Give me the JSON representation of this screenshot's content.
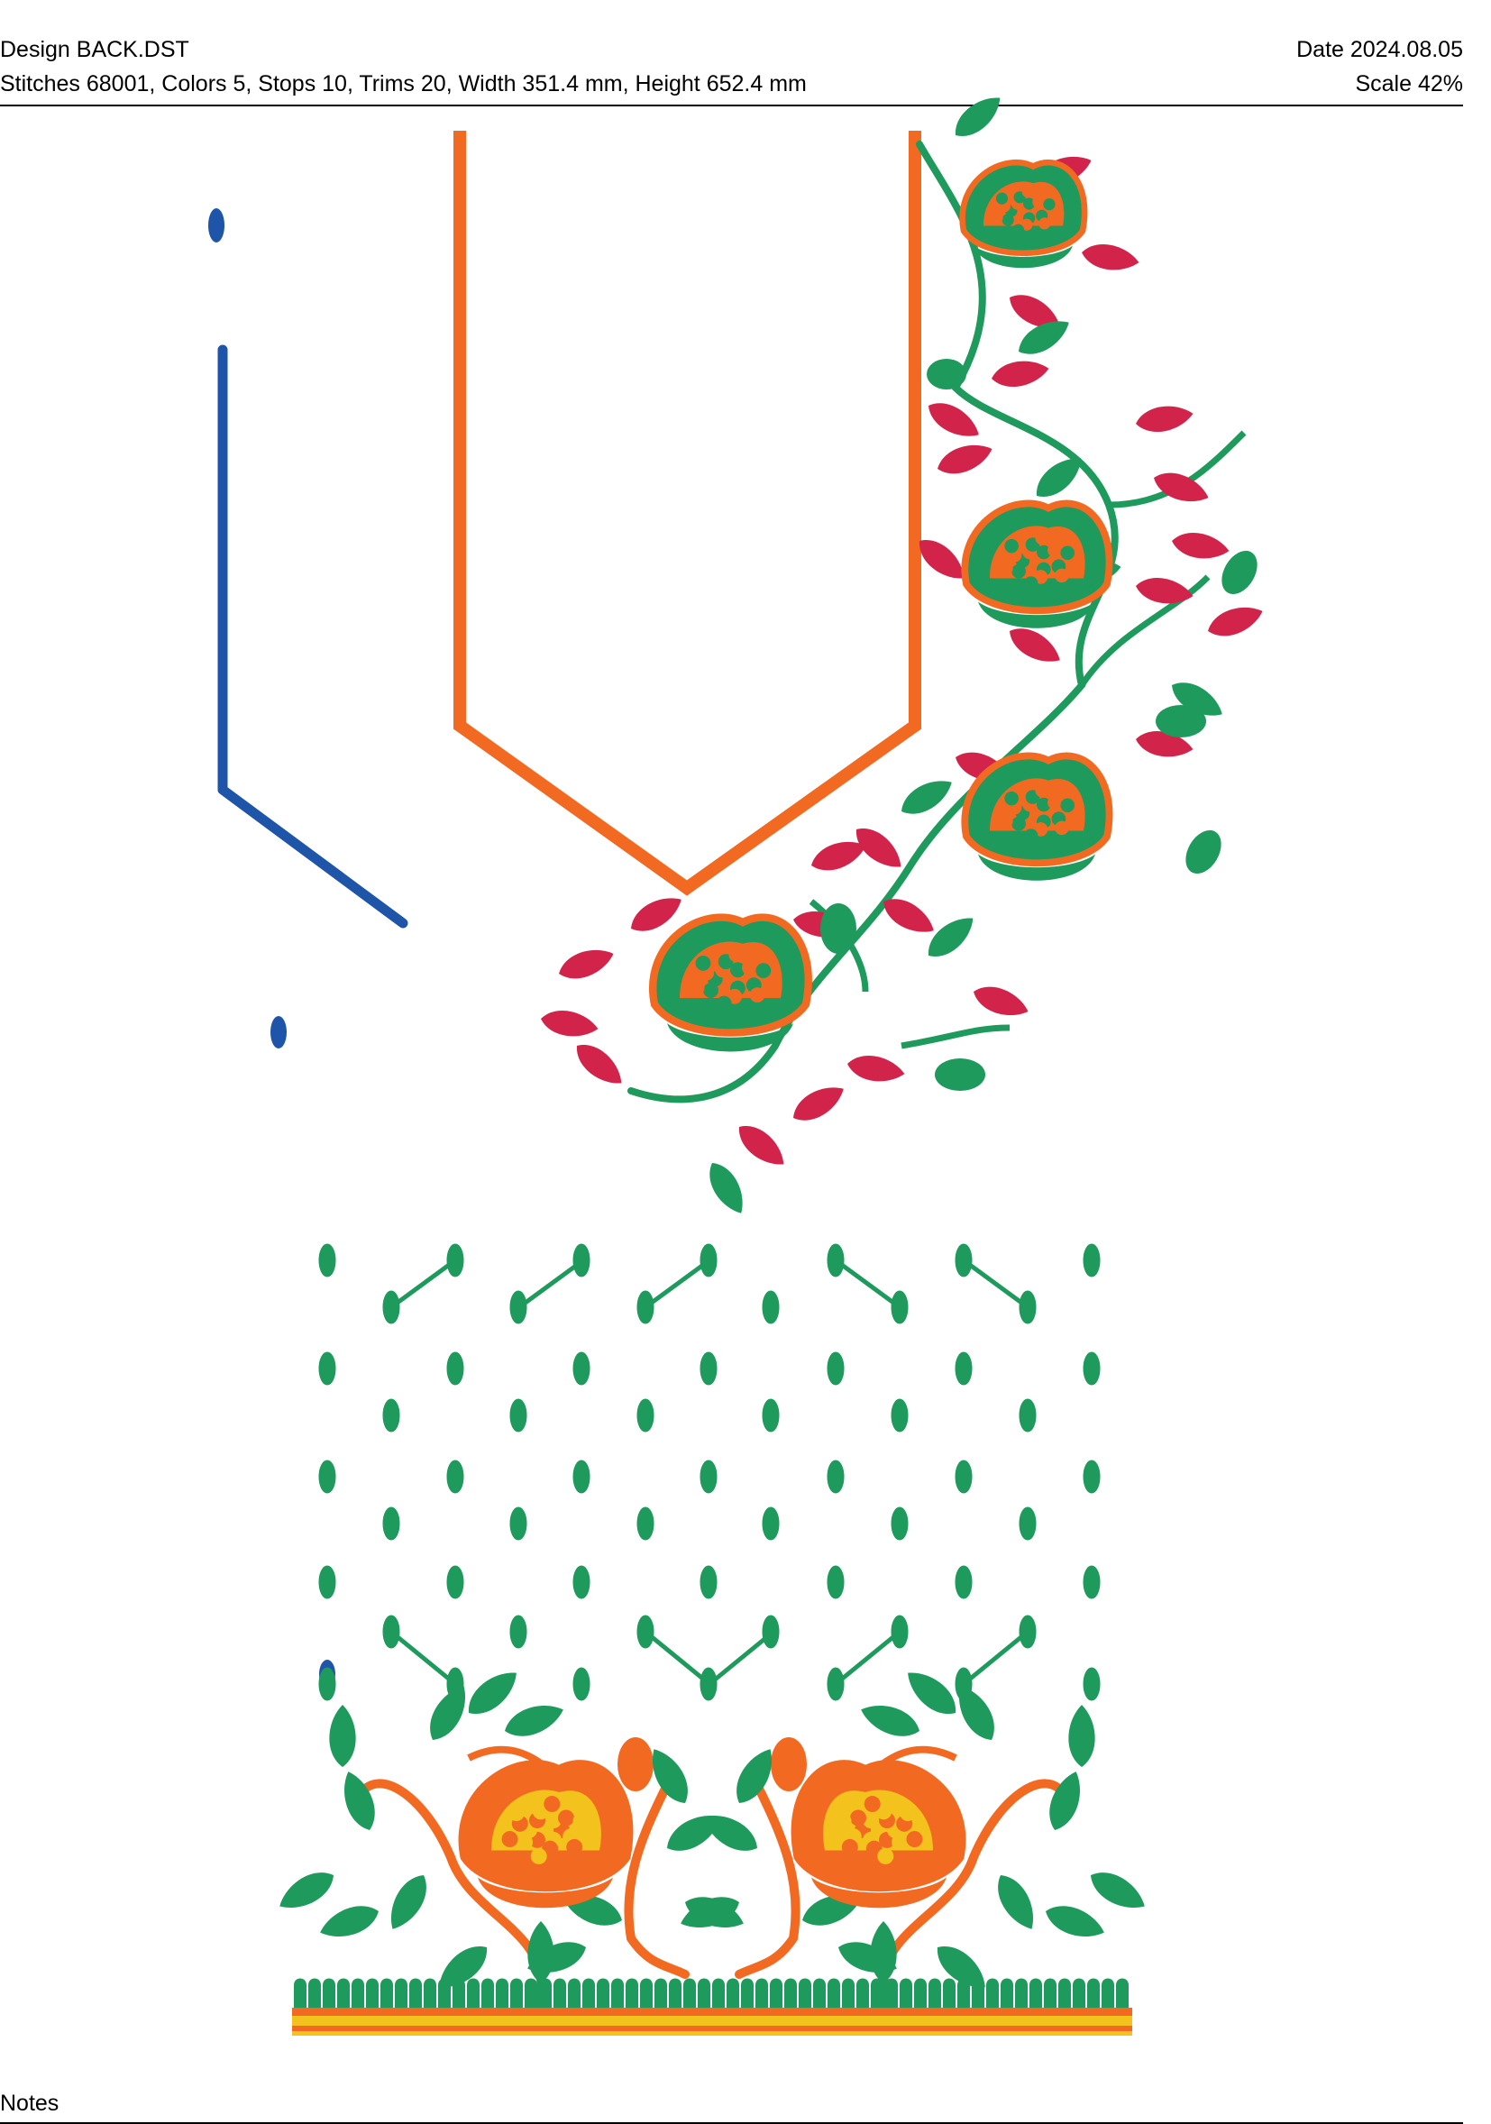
{
  "header": {
    "design": "Design BACK.DST",
    "date": "Date 2024.08.05",
    "stats": "Stitches 68001, Colors 5, Stops 10, Trims 20, Width 351.4 mm, Height 652.4 mm",
    "scale": "Scale 42%"
  },
  "footer": {
    "notes": "Notes"
  },
  "colors": {
    "blue": "#1f55a8",
    "orange": "#f26a21",
    "green": "#1e9a5c",
    "red": "#d2244a",
    "yellow": "#f3c21c"
  }
}
